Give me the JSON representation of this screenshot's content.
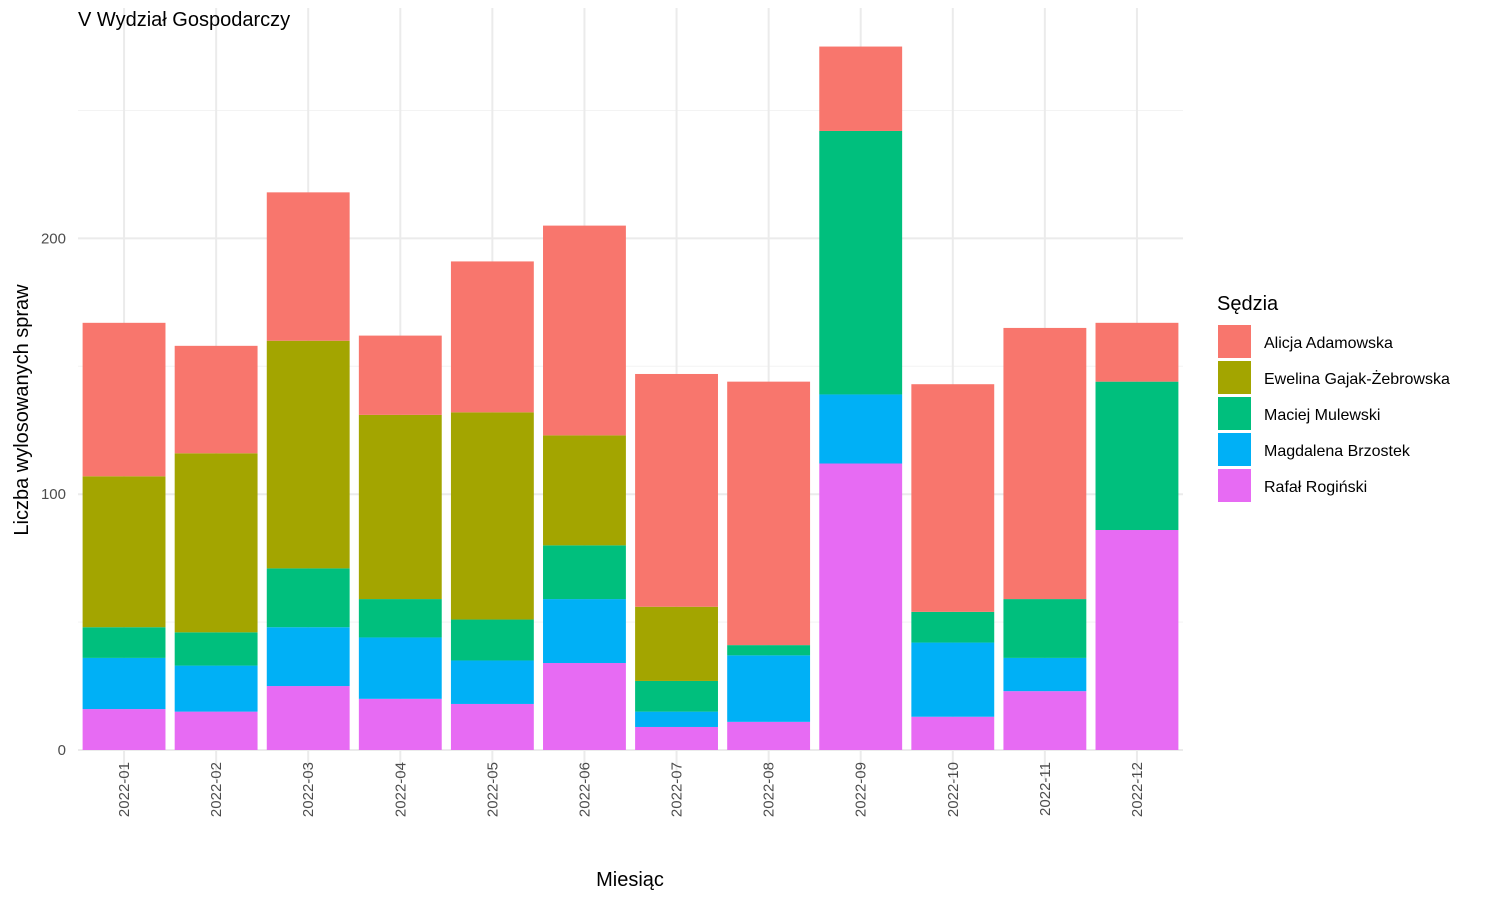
{
  "chart_data": {
    "type": "bar",
    "stacked": true,
    "title": "V Wydział Gospodarczy",
    "xlabel": "Miesiąc",
    "ylabel": "Liczba wylosowanych spraw",
    "ylim": [
      0,
      280
    ],
    "yticks": [
      0,
      100,
      200
    ],
    "grid": true,
    "legend_title": "Sędzia",
    "legend_position": "right",
    "categories": [
      "2022-01",
      "2022-02",
      "2022-03",
      "2022-04",
      "2022-05",
      "2022-06",
      "2022-07",
      "2022-08",
      "2022-09",
      "2022-10",
      "2022-11",
      "2022-12"
    ],
    "series": [
      {
        "name": "Rafał Rogiński",
        "color": "#E76BF3",
        "values": [
          16,
          15,
          25,
          20,
          18,
          34,
          9,
          11,
          112,
          13,
          23,
          86
        ]
      },
      {
        "name": "Magdalena Brzostek",
        "color": "#00B0F6",
        "values": [
          20,
          18,
          23,
          24,
          17,
          25,
          6,
          26,
          27,
          29,
          13,
          0
        ]
      },
      {
        "name": "Maciej Mulewski",
        "color": "#00BF7D",
        "values": [
          12,
          13,
          23,
          15,
          16,
          21,
          12,
          4,
          103,
          12,
          23,
          58
        ]
      },
      {
        "name": "Ewelina Gajak-Żebrowska",
        "color": "#A3A500",
        "values": [
          59,
          70,
          89,
          72,
          81,
          43,
          29,
          0,
          0,
          0,
          0,
          0
        ]
      },
      {
        "name": "Alicja Adamowska",
        "color": "#F8766D",
        "values": [
          60,
          42,
          58,
          31,
          59,
          82,
          91,
          103,
          33,
          89,
          106,
          23
        ]
      }
    ],
    "legend_order": [
      "Alicja Adamowska",
      "Ewelina Gajak-Żebrowska",
      "Maciej Mulewski",
      "Magdalena Brzostek",
      "Rafał Rogiński"
    ]
  }
}
